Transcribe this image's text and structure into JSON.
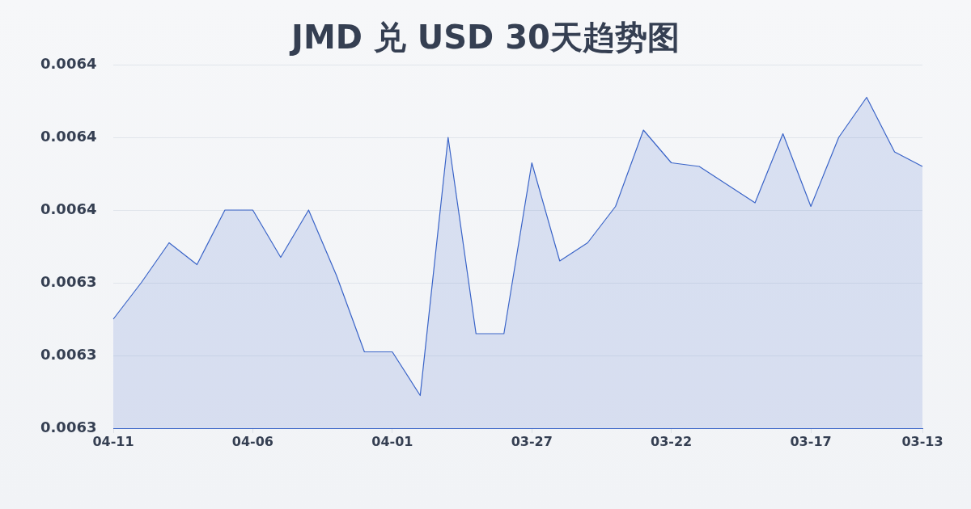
{
  "chart_data": {
    "type": "area",
    "title": "JMD 兑 USD 30天趋势图",
    "categories": [
      "04-11",
      null,
      null,
      null,
      null,
      "04-06",
      null,
      null,
      null,
      null,
      "04-01",
      null,
      null,
      null,
      null,
      "03-27",
      null,
      null,
      null,
      null,
      "03-22",
      null,
      null,
      null,
      null,
      "03-17",
      null,
      null,
      null,
      "03-13"
    ],
    "series": [
      {
        "color": "#3a64c8",
        "values": [
          0.00633,
          0.00634,
          0.006351,
          0.006345,
          0.00636,
          0.00636,
          0.006347,
          0.00636,
          0.006342,
          0.006321,
          0.006321,
          0.006309,
          0.00638,
          0.006326,
          0.006326,
          0.006373,
          0.006346,
          0.006351,
          0.006361,
          0.006382,
          0.006373,
          0.006372,
          0.006367,
          0.006362,
          0.006381,
          0.006361,
          0.00638,
          0.006391,
          0.006376,
          0.006372
        ]
      }
    ],
    "ylim": [
      0.0063,
      0.0064
    ],
    "yticks": [
      {
        "value": 0.0063,
        "label": "0.0063"
      },
      {
        "value": 0.00632,
        "label": "0.0063"
      },
      {
        "value": 0.00634,
        "label": "0.0063"
      },
      {
        "value": 0.00636,
        "label": "0.0064"
      },
      {
        "value": 0.00638,
        "label": "0.0064"
      },
      {
        "value": 0.0064,
        "label": "0.0064"
      }
    ],
    "grid": "y"
  }
}
